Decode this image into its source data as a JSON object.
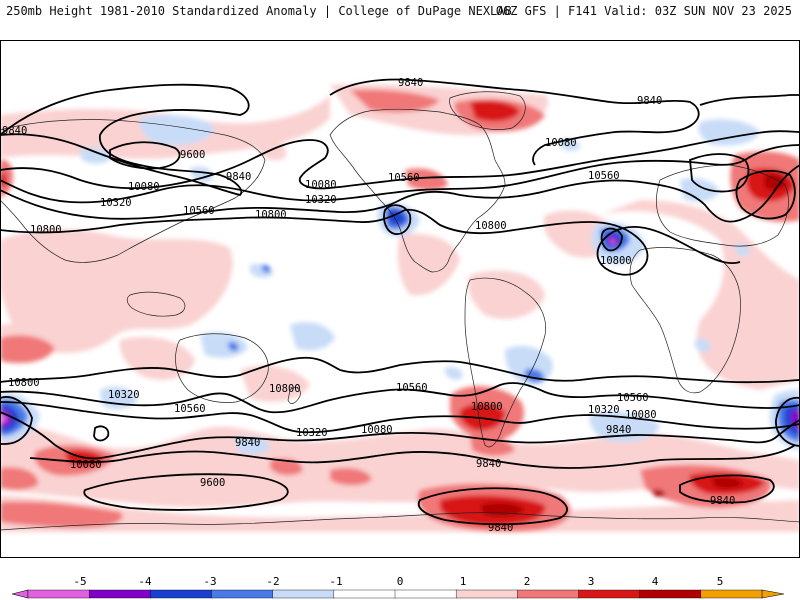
{
  "header": {
    "left": "250mb Height 1981-2010 Standardized Anomaly | College of DuPage NEXLAB",
    "right": "06Z GFS | F141 Valid: 03Z SUN NOV 23 2025"
  },
  "colors": {
    "neg5": "#e060e0",
    "neg4": "#8000c8",
    "neg3": "#1a3fd0",
    "neg2": "#4a7ae8",
    "neg1": "#c8dcf8",
    "neutral": "#ffffff",
    "pos1": "#fad2d2",
    "pos2": "#f07878",
    "pos3": "#d81818",
    "pos4": "#b00000",
    "pos5": "#f0a000",
    "contour": "#000000"
  },
  "colorbar": {
    "ticks": [
      "-5",
      "-4",
      "-3",
      "-2",
      "-1",
      "0",
      "1",
      "2",
      "3",
      "4",
      "5"
    ]
  },
  "contour_labels": [
    {
      "text": "9840"
    },
    {
      "text": "9840"
    },
    {
      "text": "9840"
    },
    {
      "text": "9840"
    },
    {
      "text": "9600"
    },
    {
      "text": "10080"
    },
    {
      "text": "10080"
    },
    {
      "text": "10080"
    },
    {
      "text": "10320"
    },
    {
      "text": "10320"
    },
    {
      "text": "10560"
    },
    {
      "text": "10560"
    },
    {
      "text": "10560"
    },
    {
      "text": "10800"
    },
    {
      "text": "10800"
    },
    {
      "text": "10800"
    },
    {
      "text": "10800"
    },
    {
      "text": "10800"
    },
    {
      "text": "10320"
    },
    {
      "text": "10560"
    },
    {
      "text": "10800"
    },
    {
      "text": "10560"
    },
    {
      "text": "10320"
    },
    {
      "text": "10080"
    },
    {
      "text": "10800"
    },
    {
      "text": "10560"
    },
    {
      "text": "10320"
    },
    {
      "text": "10080"
    },
    {
      "text": "9840"
    },
    {
      "text": "9840"
    },
    {
      "text": "9840"
    },
    {
      "text": "10080"
    },
    {
      "text": "9600"
    },
    {
      "text": "9840"
    },
    {
      "text": "9840"
    }
  ]
}
